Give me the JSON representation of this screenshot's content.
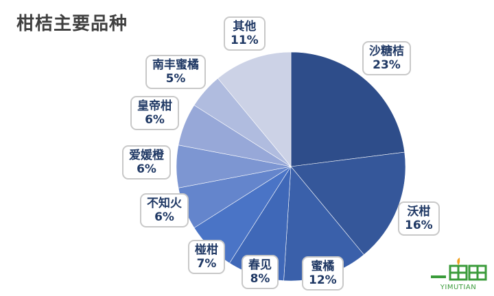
{
  "chart_data": {
    "type": "pie",
    "title": "柑桔主要品种",
    "categories": [
      "沙糖桔",
      "沃柑",
      "蜜橘",
      "春见",
      "椪柑",
      "不知火",
      "爱媛橙",
      "皇帝柑",
      "南丰蜜橘",
      "其他"
    ],
    "values": [
      23,
      16,
      12,
      8,
      7,
      6,
      6,
      6,
      5,
      11
    ],
    "value_labels": [
      "23%",
      "16%",
      "12%",
      "8%",
      "7%",
      "6%",
      "6%",
      "6%",
      "5%",
      "11%"
    ],
    "start_angle": "12 o'clock",
    "direction": "clockwise",
    "colors": [
      "#2e4d8a",
      "#35579a",
      "#3a60aa",
      "#3f68b8",
      "#4a74c6",
      "#6485cc",
      "#7d96d2",
      "#97a8d8",
      "#b0bcdf",
      "#ccd2e6"
    ]
  },
  "logo": {
    "text": "YIMUTIAN",
    "color": "#3a9b3a"
  }
}
